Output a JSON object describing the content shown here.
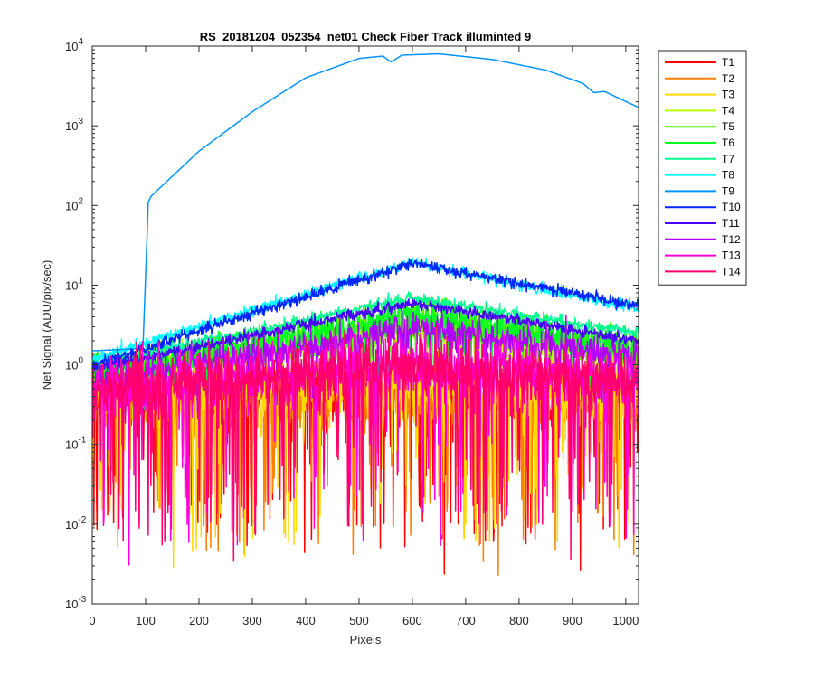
{
  "chart_data": {
    "type": "line",
    "title": "RS_20181204_052354_net01    Check Fiber      Track illuminted 9",
    "xlabel": "Pixels",
    "ylabel": "Net Signal (ADU/pix/sec)",
    "xlim": [
      0,
      1024
    ],
    "ylim": [
      0.001,
      10000
    ],
    "yscale": "log",
    "xticks": [
      0,
      100,
      200,
      300,
      400,
      500,
      600,
      700,
      800,
      900,
      1000
    ],
    "yticks": [
      {
        "base": "10",
        "exp": "-3",
        "value": 0.001
      },
      {
        "base": "10",
        "exp": "-2",
        "value": 0.01
      },
      {
        "base": "10",
        "exp": "-1",
        "value": 0.1
      },
      {
        "base": "10",
        "exp": "0",
        "value": 1
      },
      {
        "base": "10",
        "exp": "1",
        "value": 10
      },
      {
        "base": "10",
        "exp": "2",
        "value": 100
      },
      {
        "base": "10",
        "exp": "3",
        "value": 1000
      },
      {
        "base": "10",
        "exp": "4",
        "value": 10000
      }
    ],
    "grid": false,
    "legend_position": "outside-right",
    "series": [
      {
        "name": "T1",
        "color": "#ff0000",
        "profile": [
          [
            0,
            0.4
          ],
          [
            1024,
            0.4
          ]
        ],
        "noise": "high"
      },
      {
        "name": "T2",
        "color": "#ff7f00",
        "profile": [
          [
            0,
            0.4
          ],
          [
            1024,
            0.4
          ]
        ],
        "noise": "high"
      },
      {
        "name": "T3",
        "color": "#ffd800",
        "profile": [
          [
            0,
            0.5
          ],
          [
            1024,
            0.5
          ]
        ],
        "noise": "high"
      },
      {
        "name": "T4",
        "color": "#b6ff00",
        "profile": [
          [
            0,
            0.7
          ],
          [
            600,
            2.8
          ],
          [
            1024,
            1.2
          ]
        ],
        "noise": "medium"
      },
      {
        "name": "T5",
        "color": "#4cff00",
        "profile": [
          [
            0,
            0.7
          ],
          [
            600,
            4.0
          ],
          [
            1024,
            1.5
          ]
        ],
        "noise": "medium"
      },
      {
        "name": "T6",
        "color": "#00ff21",
        "profile": [
          [
            0,
            0.8
          ],
          [
            600,
            4.2
          ],
          [
            1024,
            1.6
          ]
        ],
        "noise": "medium"
      },
      {
        "name": "T7",
        "color": "#00ff90",
        "profile": [
          [
            0,
            1.0
          ],
          [
            600,
            7.0
          ],
          [
            1024,
            2.5
          ]
        ],
        "noise": "low"
      },
      {
        "name": "T8",
        "color": "#00ffff",
        "profile": [
          [
            0,
            1.2
          ],
          [
            600,
            19.5
          ],
          [
            1024,
            5.0
          ]
        ],
        "noise": "low"
      },
      {
        "name": "T9",
        "color": "#0094ff",
        "profile": [
          [
            0,
            1.5
          ],
          [
            95,
            1.6
          ],
          [
            105,
            110
          ],
          [
            110,
            130
          ],
          [
            200,
            480
          ],
          [
            300,
            1500
          ],
          [
            400,
            4000
          ],
          [
            500,
            7000
          ],
          [
            545,
            7500
          ],
          [
            560,
            6300
          ],
          [
            580,
            7700
          ],
          [
            650,
            8000
          ],
          [
            750,
            6800
          ],
          [
            850,
            5000
          ],
          [
            920,
            3400
          ],
          [
            940,
            2600
          ],
          [
            960,
            2700
          ],
          [
            1024,
            1700
          ]
        ],
        "noise": "none"
      },
      {
        "name": "T10",
        "color": "#0026ff",
        "profile": [
          [
            0,
            1.0
          ],
          [
            600,
            19.0
          ],
          [
            1024,
            5.5
          ]
        ],
        "noise": "low"
      },
      {
        "name": "T11",
        "color": "#4800ff",
        "profile": [
          [
            0,
            0.9
          ],
          [
            600,
            6.0
          ],
          [
            1024,
            2.0
          ]
        ],
        "noise": "low"
      },
      {
        "name": "T12",
        "color": "#b200ff",
        "profile": [
          [
            0,
            0.6
          ],
          [
            600,
            3.0
          ],
          [
            1024,
            1.2
          ]
        ],
        "noise": "medium"
      },
      {
        "name": "T13",
        "color": "#ff00dc",
        "profile": [
          [
            0,
            0.5
          ],
          [
            600,
            1.0
          ],
          [
            1024,
            0.6
          ]
        ],
        "noise": "high"
      },
      {
        "name": "T14",
        "color": "#ff006e",
        "profile": [
          [
            0,
            0.5
          ],
          [
            600,
            0.9
          ],
          [
            1024,
            0.6
          ]
        ],
        "noise": "high"
      }
    ]
  }
}
